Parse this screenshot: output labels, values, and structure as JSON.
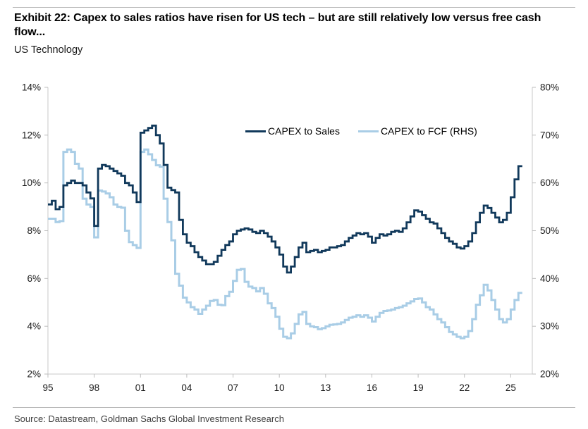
{
  "header": {
    "title": "Exhibit 22: Capex to sales ratios have risen for US tech – but are still relatively low versus free cash flow...",
    "subtitle": "US Technology"
  },
  "footer": {
    "source": "Source: Datastream, Goldman Sachs Global Investment Research"
  },
  "colors": {
    "capex_to_sales_line": "#11395B",
    "capex_to_fcf_line": "#A9CDE6",
    "axis_line": "#C8C8C8",
    "tick_mark": "#BDBDBD",
    "tick_text": "#1a1a1a",
    "rule": "#B9B9B9",
    "source_text": "#3F3F3F"
  },
  "chart_data": {
    "type": "line",
    "title": "Exhibit 22: Capex to sales ratios have risen for US tech – but are still relatively low versus free cash flow...",
    "subtitle": "US Technology",
    "interpolation": "step-after",
    "grid": false,
    "legend_position": "inside-top-center",
    "x_unit": "year (quarterly data)",
    "x_start": 1995.0,
    "x_step": 0.25,
    "x_plot_min": 1995.0,
    "x_plot_max": 2026.4,
    "x_ticks": {
      "values": [
        1995,
        1998,
        2001,
        2004,
        2007,
        2010,
        2013,
        2016,
        2019,
        2022,
        2025
      ],
      "labels": [
        "95",
        "98",
        "01",
        "04",
        "07",
        "10",
        "13",
        "16",
        "19",
        "22",
        "25"
      ]
    },
    "left_axis": {
      "min": 2,
      "max": 14,
      "step": 2,
      "suffix": "%"
    },
    "right_axis": {
      "min": 20,
      "max": 80,
      "step": 10,
      "suffix": "%"
    },
    "series": [
      {
        "name": "CAPEX to Sales",
        "axis": "left",
        "color": "#11395B",
        "width": 2.8,
        "values": [
          9.1,
          9.25,
          8.9,
          9.0,
          9.9,
          10.0,
          10.1,
          10.0,
          10.0,
          9.9,
          9.6,
          9.35,
          8.2,
          10.6,
          10.75,
          10.7,
          10.6,
          10.5,
          10.4,
          10.3,
          10.0,
          9.9,
          9.6,
          9.2,
          12.1,
          12.2,
          12.3,
          12.4,
          12.0,
          11.65,
          10.75,
          9.8,
          9.7,
          9.6,
          8.45,
          7.85,
          7.5,
          7.35,
          7.1,
          6.9,
          6.75,
          6.6,
          6.6,
          6.7,
          6.95,
          7.2,
          7.4,
          7.55,
          7.85,
          8.0,
          8.05,
          8.1,
          8.05,
          7.95,
          7.9,
          8.0,
          7.9,
          7.75,
          7.55,
          7.3,
          7.0,
          6.5,
          6.25,
          6.5,
          6.9,
          7.3,
          7.5,
          7.1,
          7.15,
          7.2,
          7.1,
          7.15,
          7.2,
          7.3,
          7.3,
          7.35,
          7.4,
          7.55,
          7.7,
          7.8,
          7.9,
          7.85,
          7.9,
          7.75,
          7.5,
          7.7,
          7.85,
          7.8,
          7.85,
          7.95,
          8.0,
          7.95,
          8.1,
          8.35,
          8.6,
          8.85,
          8.8,
          8.65,
          8.5,
          8.35,
          8.3,
          8.1,
          7.9,
          7.7,
          7.55,
          7.45,
          7.3,
          7.25,
          7.35,
          7.55,
          7.9,
          8.35,
          8.75,
          9.05,
          8.95,
          8.75,
          8.55,
          8.35,
          8.45,
          8.75,
          9.4,
          10.15,
          10.7
        ]
      },
      {
        "name": "CAPEX to FCF (RHS)",
        "axis": "right",
        "color": "#A9CDE6",
        "width": 3,
        "values": [
          52.5,
          52.5,
          51.8,
          52.0,
          66.5,
          67.0,
          66.5,
          64.0,
          63.0,
          56.7,
          55.5,
          55.0,
          48.6,
          58.4,
          58.2,
          57.8,
          57.0,
          55.5,
          55.0,
          54.8,
          50.0,
          47.6,
          47.0,
          46.4,
          66.5,
          67.0,
          66.0,
          64.8,
          63.7,
          63.4,
          56.7,
          51.8,
          48.0,
          41.0,
          38.5,
          36.0,
          35.0,
          34.0,
          33.5,
          32.6,
          33.5,
          34.3,
          35.3,
          35.5,
          34.5,
          34.4,
          36.3,
          37.2,
          39.5,
          41.8,
          42.0,
          39.3,
          38.3,
          38.0,
          37.3,
          38.0,
          36.8,
          34.8,
          33.8,
          32.0,
          29.5,
          27.8,
          27.5,
          28.5,
          30.5,
          32.5,
          33.0,
          30.5,
          30.0,
          29.8,
          29.4,
          29.6,
          30.0,
          30.3,
          30.4,
          30.5,
          30.8,
          31.3,
          31.8,
          32.0,
          32.3,
          32.0,
          32.3,
          31.8,
          31.0,
          32.0,
          32.8,
          33.2,
          33.3,
          33.5,
          33.8,
          34.0,
          34.3,
          34.8,
          35.2,
          35.7,
          35.8,
          35.0,
          34.0,
          33.5,
          32.5,
          31.5,
          30.8,
          29.8,
          28.8,
          28.3,
          27.8,
          27.5,
          27.8,
          29.0,
          31.5,
          34.5,
          36.5,
          38.7,
          37.5,
          35.5,
          33.5,
          31.5,
          30.8,
          31.5,
          33.5,
          35.5,
          37.0
        ]
      }
    ]
  }
}
